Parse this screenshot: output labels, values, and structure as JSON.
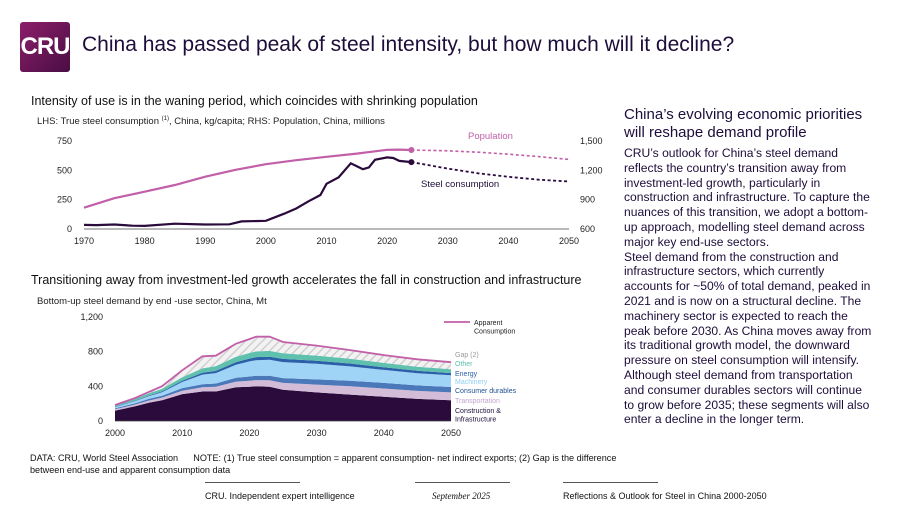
{
  "header": {
    "logo_text": "CRU",
    "title": "China has passed peak of steel intensity, but how much will it decline?"
  },
  "sections": {
    "top_title": "Intensity of use is in the waning period, which coincides with shrinking population",
    "top_subtitle_pre": "LHS: True steel consumption ",
    "top_subtitle_sup": "(1)",
    "top_subtitle_post": ", China, kg/capita; RHS: Population, China, millions",
    "bottom_title": "Transitioning away from investment-led growth accelerates the fall in construction and infrastructure",
    "bottom_subtitle": "Bottom-up steel demand by end -use sector, China, Mt"
  },
  "right_panel": {
    "heading": "China’s evolving economic priorities will reshape demand profile",
    "p1": "CRU’s outlook for China’s steel demand reflects the country’s transition away from investment-led growth, particularly in construction and infrastructure. To capture the nuances of this transition, we adopt a bottom-up approach, modelling steel demand across major key end-use sectors.",
    "p2": "Steel demand from the construction and infrastructure sectors, which currently accounts for ~50% of total demand, peaked in 2021 and is now on a structural decline. The machinery sector is expected to reach the peak before 2030. As China moves away from its traditional growth model, the downward pressure on steel consumption will intensify. Although steel demand from transportation and consumer durables sectors will continue to grow before 2035; these segments will also enter a decline in the longer term."
  },
  "notes": {
    "data": "DATA: CRU, World Steel Association",
    "note": "NOTE: (1) True steel consumption = apparent consumption- net indirect exports; (2) Gap is the difference between end-use and apparent consumption data"
  },
  "footer": {
    "left": "CRU. Independent expert intelligence",
    "center": "September 2025",
    "right": "Reflections & Outlook for Steel in China 2000-2050"
  },
  "colors": {
    "population": "#c25fa9",
    "steel": "#2a0b3c",
    "construction": "#2a0b3c",
    "transportation": "#d3bcd8",
    "consumer_durables": "#4a78b9",
    "machinery": "#9fd4f7",
    "energy": "#2b5fa8",
    "other": "#5fc0ad",
    "gap": "#e8e8e8",
    "apparent": "#c25fa9"
  },
  "chart_data": [
    {
      "type": "line",
      "title": "Intensity of use is in the waning period, which coincides with shrinking population",
      "x_ticks": [
        "1970",
        "1980",
        "1990",
        "2000",
        "2010",
        "2020",
        "2030",
        "2040",
        "2050"
      ],
      "xlim": [
        1970,
        2050
      ],
      "ylim_left": [
        0,
        750
      ],
      "y_ticks_left": [
        "0",
        "250",
        "500",
        "750"
      ],
      "ylim_right": [
        600,
        1500
      ],
      "y_ticks_right": [
        "600",
        "900",
        "1,200",
        "1,500"
      ],
      "series": [
        {
          "name": "Population",
          "axis": "right",
          "x": [
            1970,
            1975,
            1980,
            1985,
            1990,
            1995,
            2000,
            2005,
            2010,
            2015,
            2020,
            2022,
            2024
          ],
          "values": [
            818,
            915,
            981,
            1050,
            1135,
            1205,
            1263,
            1304,
            1338,
            1371,
            1410,
            1412,
            1408
          ],
          "forecast_x": [
            2024,
            2030,
            2035,
            2040,
            2045,
            2050
          ],
          "forecast_values": [
            1408,
            1400,
            1385,
            1365,
            1340,
            1312
          ]
        },
        {
          "name": "Steel consumption",
          "axis": "left",
          "x": [
            1970,
            1972,
            1975,
            1978,
            1980,
            1985,
            1990,
            1994,
            1996,
            2000,
            2003,
            2005,
            2007,
            2009,
            2010,
            2012,
            2014,
            2015,
            2016,
            2017,
            2018,
            2020,
            2021,
            2022,
            2023,
            2024
          ],
          "values": [
            35,
            33,
            38,
            28,
            26,
            45,
            38,
            40,
            65,
            70,
            130,
            175,
            235,
            290,
            385,
            440,
            560,
            535,
            510,
            525,
            590,
            610,
            605,
            580,
            575,
            570
          ],
          "forecast_x": [
            2024,
            2030,
            2035,
            2040,
            2045,
            2050
          ],
          "forecast_values": [
            570,
            515,
            475,
            445,
            420,
            405
          ]
        }
      ],
      "annotations": [
        "Population",
        "Steel consumption"
      ]
    },
    {
      "type": "area",
      "title": "Transitioning away from investment-led growth accelerates the fall in construction and infrastructure",
      "ylabel": "Mt",
      "xlim": [
        2000,
        2050
      ],
      "ylim": [
        0,
        1200
      ],
      "x_ticks": [
        "2000",
        "2010",
        "2020",
        "2030",
        "2040",
        "2050"
      ],
      "y_ticks": [
        "0",
        "400",
        "800",
        "1,200"
      ],
      "x": [
        2000,
        2003,
        2005,
        2007,
        2010,
        2013,
        2015,
        2018,
        2020,
        2021,
        2023,
        2025,
        2030,
        2035,
        2040,
        2045,
        2050
      ],
      "series": [
        {
          "name": "Construction & Infrastructure",
          "values": [
            120,
            170,
            210,
            240,
            310,
            340,
            340,
            390,
            395,
            400,
            395,
            360,
            330,
            305,
            280,
            255,
            240
          ]
        },
        {
          "name": "Transportation",
          "values": [
            15,
            20,
            25,
            30,
            40,
            50,
            55,
            65,
            70,
            72,
            75,
            80,
            90,
            95,
            95,
            92,
            90
          ]
        },
        {
          "name": "Consumer durables",
          "values": [
            10,
            15,
            20,
            22,
            30,
            35,
            38,
            45,
            48,
            50,
            52,
            55,
            60,
            65,
            65,
            64,
            62
          ]
        },
        {
          "name": "Machinery",
          "values": [
            15,
            25,
            30,
            40,
            70,
            110,
            120,
            150,
            175,
            180,
            185,
            185,
            180,
            165,
            150,
            140,
            135
          ]
        },
        {
          "name": "Energy",
          "values": [
            5,
            5,
            8,
            10,
            15,
            22,
            25,
            30,
            32,
            35,
            35,
            36,
            35,
            33,
            30,
            28,
            26
          ]
        },
        {
          "name": "Other",
          "values": [
            15,
            20,
            25,
            30,
            40,
            50,
            55,
            62,
            65,
            66,
            67,
            66,
            60,
            55,
            50,
            48,
            45
          ]
        },
        {
          "name": "Gap",
          "values": [
            5,
            10,
            15,
            30,
            80,
            140,
            120,
            150,
            160,
            170,
            165,
            130,
            115,
            100,
            90,
            85,
            80
          ]
        }
      ],
      "apparent_consumption": [
        185,
        265,
        333,
        402,
        585,
        747,
        753,
        892,
        945,
        973,
        974,
        912,
        870,
        818,
        760,
        712,
        678
      ],
      "legend": [
        "Apparent Consumption",
        "Gap (2)",
        "Other",
        "Energy",
        "Machinery",
        "Consumer durables",
        "Transportation",
        "Construction & Infrastructure"
      ],
      "legend_position": "right"
    }
  ]
}
